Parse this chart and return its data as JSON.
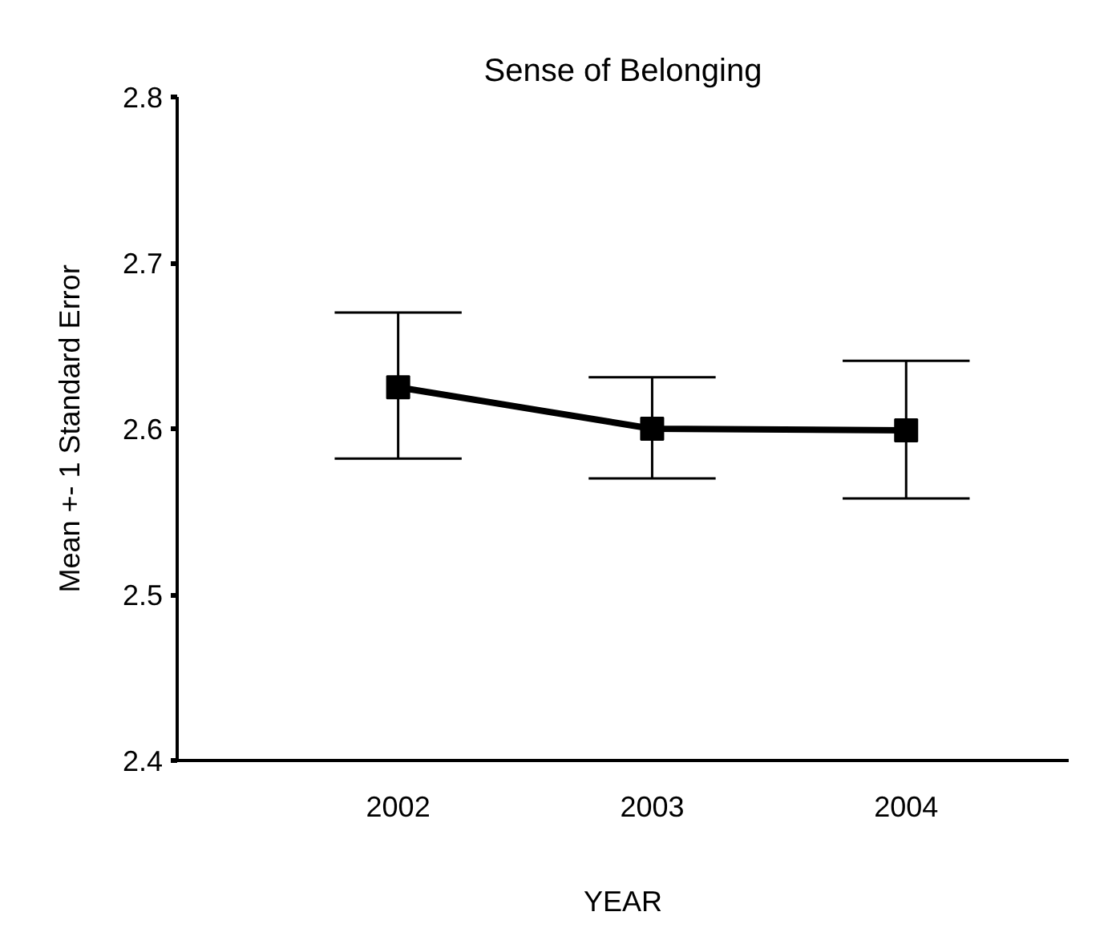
{
  "chart_data": {
    "type": "line",
    "title": "Sense of Belonging",
    "xlabel": "YEAR",
    "ylabel": "Mean +- 1 Standard Error",
    "categories": [
      "2002",
      "2003",
      "2004"
    ],
    "values": [
      2.625,
      2.6,
      2.599
    ],
    "errors": [
      [
        2.582,
        2.67
      ],
      [
        2.57,
        2.631
      ],
      [
        2.558,
        2.641
      ]
    ],
    "color": "#000000",
    "ylim": [
      2.4,
      2.8
    ],
    "yticks": [
      2.4,
      2.5,
      2.6,
      2.7,
      2.8
    ],
    "marker": "square",
    "line_style": "solid",
    "grid": false
  }
}
